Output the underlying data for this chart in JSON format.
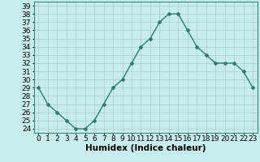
{
  "x": [
    0,
    1,
    2,
    3,
    4,
    5,
    6,
    7,
    8,
    9,
    10,
    11,
    12,
    13,
    14,
    15,
    16,
    17,
    18,
    19,
    20,
    21,
    22,
    23
  ],
  "y": [
    29,
    27,
    26,
    25,
    24,
    24,
    25,
    27,
    29,
    30,
    32,
    34,
    35,
    37,
    38,
    38,
    36,
    34,
    33,
    32,
    32,
    32,
    31,
    29
  ],
  "line_color": "#2d7d6e",
  "marker": "D",
  "marker_size": 2,
  "bg_color": "#c8ecec",
  "grid_color": "#a8cccc",
  "xlabel": "Humidex (Indice chaleur)",
  "xlim": [
    -0.5,
    23.5
  ],
  "ylim": [
    23.5,
    39.5
  ],
  "yticks": [
    24,
    25,
    26,
    27,
    28,
    29,
    30,
    31,
    32,
    33,
    34,
    35,
    36,
    37,
    38,
    39
  ],
  "xticks": [
    0,
    1,
    2,
    3,
    4,
    5,
    6,
    7,
    8,
    9,
    10,
    11,
    12,
    13,
    14,
    15,
    16,
    17,
    18,
    19,
    20,
    21,
    22,
    23
  ],
  "xlabel_fontsize": 7.5,
  "tick_fontsize": 6.5,
  "line_width": 1.0
}
